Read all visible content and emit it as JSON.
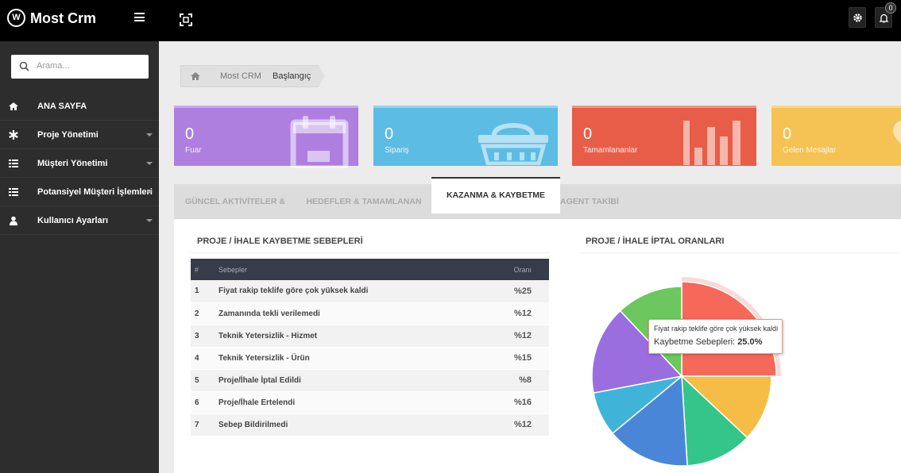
{
  "app": {
    "brand": "Most Crm",
    "logo_letter": "W",
    "search_placeholder": "Arama..."
  },
  "topbar": {
    "notification_count": "0"
  },
  "sidebar": {
    "items": [
      {
        "label": "ANA SAYFA",
        "icon": "home-icon"
      },
      {
        "label": "Proje Yönetimi",
        "icon": "asterisk-icon"
      },
      {
        "label": "Müşteri Yönetimi",
        "icon": "list-icon"
      },
      {
        "label": "Potansiyel Müşteri İşlemleri",
        "icon": "list-icon"
      },
      {
        "label": "Kullanıcı Ayarları",
        "icon": "user-icon"
      }
    ]
  },
  "breadcrumb": [
    "Most CRM",
    "Başlangıç"
  ],
  "stats": [
    {
      "value": "0",
      "label": "Fuar",
      "color": "#ae7fdf",
      "icon": "calendar-icon"
    },
    {
      "value": "0",
      "label": "Sipariş",
      "color": "#5cbce4",
      "icon": "basket-icon"
    },
    {
      "value": "0",
      "label": "Tamamlananlar",
      "color": "#e85d48",
      "icon": "bar-chart-icon"
    },
    {
      "value": "0",
      "label": "Gelen Mesajlar",
      "color": "#f5c254",
      "icon": "message-icon"
    }
  ],
  "tabs": [
    {
      "label": "GÜNCEL AKTİVİTELER & TAKVİM"
    },
    {
      "label": "HEDEFLER & TAMAMLANAN RAPORU"
    },
    {
      "label": "KAZANMA & KAYBETME ORANLARI"
    },
    {
      "label": "AGENT TAKİBİ"
    }
  ],
  "left_panel": {
    "title": "PROJE / İHALE KAYBETME SEBEPLERİ",
    "headers": [
      "#",
      "Sebepler",
      "Oranı"
    ],
    "rows": [
      [
        "1",
        "Fiyat rakip teklife göre çok yüksek kaldi",
        "%25"
      ],
      [
        "2",
        "Zamanında tekli verilemedi",
        "%12"
      ],
      [
        "3",
        "Teknik Yetersizlik - Hizmet",
        "%12"
      ],
      [
        "4",
        "Teknik Yetersizlik - Ürün",
        "%15"
      ],
      [
        "5",
        "Proje/İhale İptal Edildi",
        "%8"
      ],
      [
        "6",
        "Proje/İhale Ertelendi",
        "%16"
      ],
      [
        "7",
        "Sebep Bildirilmedi",
        "%12"
      ]
    ]
  },
  "right_panel": {
    "title": "PROJE / İHALE İPTAL ORANLARI"
  },
  "tooltip": {
    "line1": "Fiyat rakip teklife göre çok yüksek kaldi",
    "line2_label": "Kaybetme Sebepleri:",
    "line2_value": "25.0%"
  },
  "chart_data": {
    "type": "pie",
    "slices": [
      {
        "label": "Fiyat rakip teklife göre çok yüksek kaldi",
        "value": 25,
        "color": "#f5685a"
      },
      {
        "label": "Zamanında tekli verilemedi",
        "value": 12,
        "color": "#f5bd45"
      },
      {
        "label": "Teknik Yetersizlik - Hizmet",
        "value": 12,
        "color": "#34c58b"
      },
      {
        "label": "Teknik Yetersizlik - Ürün",
        "value": 15,
        "color": "#4a86d8"
      },
      {
        "label": "Proje/İhale İptal Edildi",
        "value": 8,
        "color": "#3fb4d8"
      },
      {
        "label": "Proje/İhale Ertelendi",
        "value": 16,
        "color": "#9b6ee0"
      },
      {
        "label": "Sebep Bildirilmedi",
        "value": 12,
        "color": "#6cc85e"
      }
    ]
  }
}
